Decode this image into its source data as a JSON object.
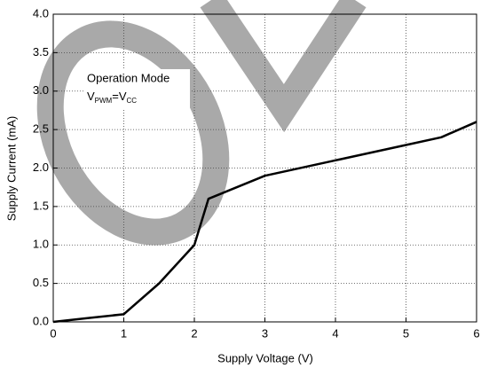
{
  "chart_data": {
    "type": "line",
    "xlabel": "Supply Voltage (V)",
    "ylabel": "Supply Current (mA)",
    "annotation": "Operation Mode",
    "annotation_formula": [
      "V",
      "PWM",
      "=V",
      "CC"
    ],
    "x": [
      0,
      0.5,
      1,
      1.5,
      2,
      2.2,
      3,
      4,
      5,
      5.5,
      6
    ],
    "series": [
      {
        "color": "#000000",
        "values": [
          0,
          0.05,
          0.1,
          0.5,
          1.0,
          1.6,
          1.9,
          2.1,
          2.3,
          2.4,
          2.6
        ]
      }
    ],
    "xlim": [
      0,
      6
    ],
    "xticks": [
      0,
      1,
      2,
      3,
      4,
      5,
      6
    ],
    "ylim": [
      0,
      4
    ],
    "yticks": [
      {
        "value": 0,
        "label": "0.0"
      },
      0.5,
      {
        "value": 1,
        "label": "1.0"
      },
      1.5,
      {
        "value": 2,
        "label": "2.0"
      },
      2.5,
      {
        "value": 3,
        "label": "3.0"
      },
      3.5,
      {
        "value": 4,
        "label": "4.0"
      }
    ],
    "grid": true
  }
}
